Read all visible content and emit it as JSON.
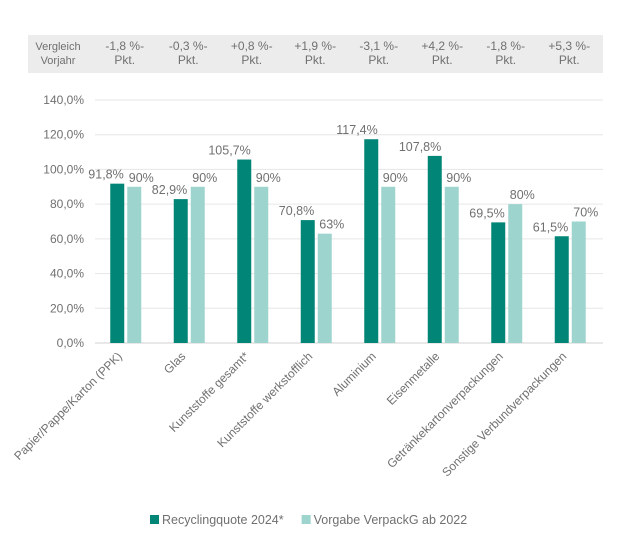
{
  "chart_data": {
    "type": "bar",
    "categories": [
      "Papier/Pappe/Karton (PPK)",
      "Glas",
      "Kunststoffe gesamt*",
      "Kunststoffe werkstofflich",
      "Aluminium",
      "Eisenmetalle",
      "Getränkekartonverpackungen",
      "Sonstige Verbundverpackungen"
    ],
    "series": [
      {
        "name": "Recyclingquote 2024*",
        "color": "#008577",
        "values": [
          91.8,
          82.9,
          105.7,
          70.8,
          117.4,
          107.8,
          69.5,
          61.5
        ],
        "labels": [
          "91,8%",
          "82,9%",
          "105,7%",
          "70,8%",
          "117,4%",
          "107,8%",
          "69,5%",
          "61,5%"
        ]
      },
      {
        "name": "Vorgabe VerpackG ab 2022",
        "color": "#9dd4cd",
        "values": [
          90,
          90,
          90,
          63,
          90,
          90,
          80,
          70
        ],
        "labels": [
          "90%",
          "90%",
          "90%",
          "63%",
          "90%",
          "90%",
          "80%",
          "70%"
        ]
      }
    ],
    "ylim": [
      0,
      140
    ],
    "yticks": [
      "0,0%",
      "20,0%",
      "40,0%",
      "60,0%",
      "80,0%",
      "100,0%",
      "120,0%",
      "140,0%"
    ],
    "grid": true,
    "legend": "bottom",
    "comparison_row": {
      "label": [
        "Vergleich",
        "Vorjahr"
      ],
      "values": [
        [
          "-1,8 %-",
          "Pkt."
        ],
        [
          "-0,3 %-",
          "Pkt."
        ],
        [
          "+0,8 %-",
          "Pkt."
        ],
        [
          "+1,9 %-",
          "Pkt."
        ],
        [
          "-3,1 %-",
          "Pkt."
        ],
        [
          "+4,2 %-",
          "Pkt."
        ],
        [
          "-1,8 %-",
          "Pkt."
        ],
        [
          "+5,3 %-",
          "Pkt."
        ]
      ]
    }
  }
}
